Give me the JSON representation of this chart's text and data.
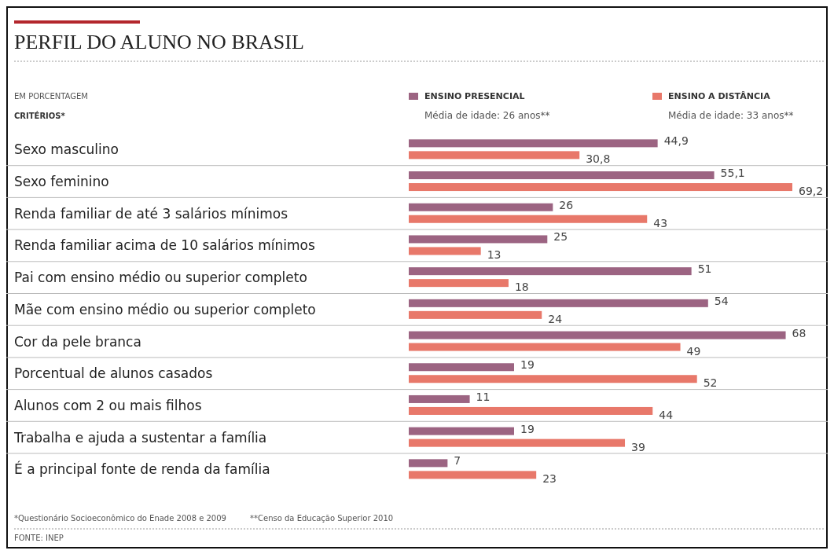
{
  "chart_data": {
    "type": "bar",
    "orientation": "horizontal",
    "title": "PERFIL DO ALUNO NO BRASIL",
    "subtitle": "EM PORCENTAGEM",
    "ylabel": "CRITÉRIOS*",
    "categories": [
      "Sexo masculino",
      "Sexo feminino",
      "Renda familiar de até 3 salários mínimos",
      "Renda familiar acima de 10 salários mínimos",
      "Pai com ensino médio ou superior completo",
      "Mãe com ensino médio ou superior completo",
      "Cor da pele branca",
      "Porcentual de alunos casados",
      "Alunos com 2 ou mais filhos",
      "Trabalha e ajuda a sustentar a família",
      "É a principal fonte de renda da família"
    ],
    "series": [
      {
        "name": "ENSINO PRESENCIAL",
        "color": "#9c6482",
        "values": [
          44.9,
          55.1,
          26,
          25,
          51,
          54,
          68,
          19,
          11,
          19,
          7
        ],
        "value_labels": [
          "44,9",
          "55,1",
          "26",
          "25",
          "51",
          "54",
          "68",
          "19",
          "11",
          "19",
          "7"
        ]
      },
      {
        "name": "ENSINO A DISTÂNCIA",
        "color": "#e8786a",
        "values": [
          30.8,
          69.2,
          43,
          13,
          18,
          24,
          49,
          52,
          44,
          39,
          23
        ],
        "value_labels": [
          "30,8",
          "69,2",
          "43",
          "13",
          "18",
          "24",
          "49",
          "52",
          "44",
          "39",
          "23"
        ]
      }
    ],
    "legend": "top right",
    "grid": "y",
    "annotations": [
      "Média de idade: 26 anos**",
      "Média de idade: 33 anos**",
      "*Questionário Socioeconômico do Enade 2008 e 2009",
      "**Censo da Educação Superior 2010",
      "FONTE: INEP"
    ]
  }
}
